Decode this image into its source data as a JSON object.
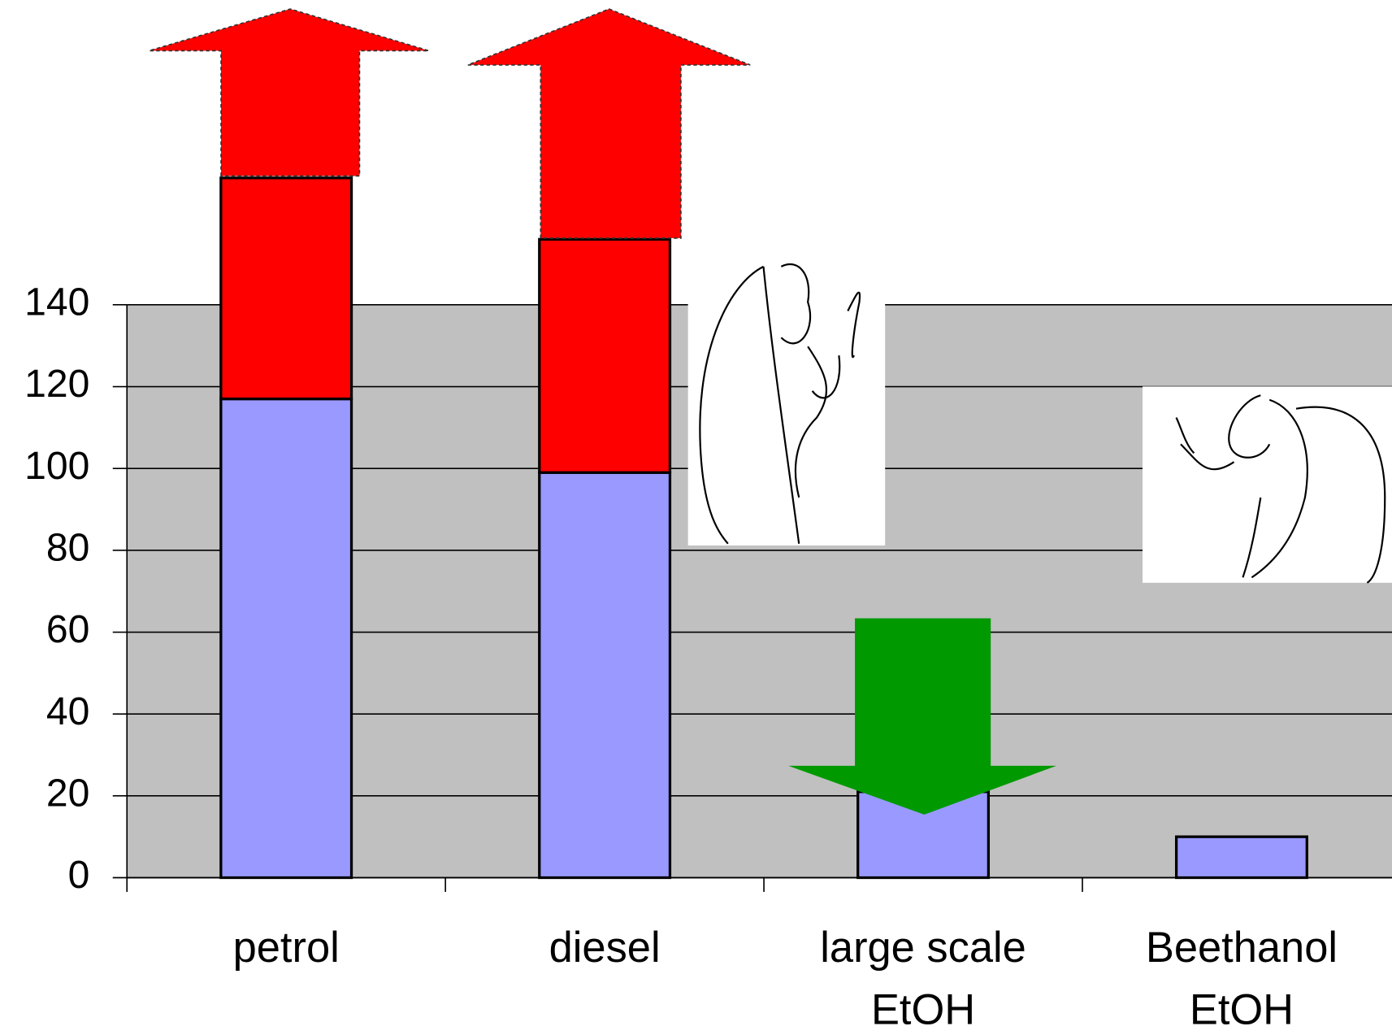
{
  "chart_data": {
    "type": "bar",
    "categories": [
      [
        "petrol"
      ],
      [
        "diesel"
      ],
      [
        "large scale",
        "EtOH"
      ],
      [
        "Beethanol",
        "EtOH"
      ]
    ],
    "series": [
      {
        "color": "#9999ff",
        "values": [
          117,
          99,
          21,
          10
        ]
      },
      {
        "color": "#ff0000",
        "values": [
          54,
          57,
          null,
          null
        ]
      }
    ],
    "ylim": [
      0,
      140
    ],
    "yticks": [
      0,
      20,
      40,
      60,
      80,
      100,
      120,
      140
    ],
    "grid": true,
    "plot_background": "#c0c0c0"
  }
}
